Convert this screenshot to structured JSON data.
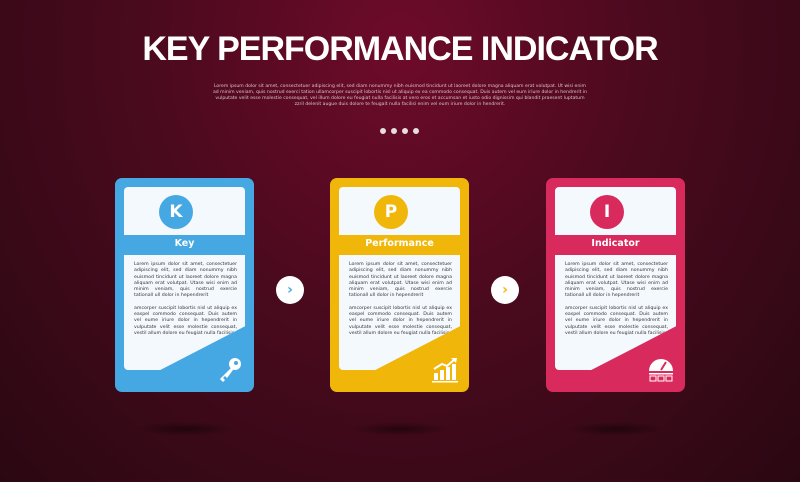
{
  "title": "KEY PERFORMANCE INDICATOR",
  "subtitle": "Lorem ipsum dolor sit amet, consectetuer adipiscing elit, sed diam nonummy nibh euismod tincidunt ut laoreet dolore magna aliquam erat volutpat. Ut wisi enim ad minim veniam, quis nostrud exerci tation ullamcorper suscipit lobortis nisl ut aliquip ex ea commodo consequat. Duis autem vel eum iriure dolor in hendrerit in vulputate velit esse molestie consequat, vel illum dolore eu feugiat nulla facilisis at vero eros et accumsan et iusto odio dignissim qui blandit praesent luptatum zzril delenit augue duis dolore te feugait nulla facilisi enim vel eum iriure dolor in hendrerit.",
  "pagination_dots": 4,
  "cards": [
    {
      "letter": "K",
      "label": "Key",
      "color": "#46a8e2",
      "icon": "key-icon",
      "para1": "Lorem ipsum dolor sit amet, consectetuer adipiscing elit, sed diam nonummy nibh euismod tincidunt ut laoreet dolore magna aliquam erat volutpat. Utase wisi enim ad minim veniam, quis nostrud exercie tationall ull dolor in hependrerit",
      "para2": "amcorper suscipit lobortis nisl ut aliquip ex easpel commodo consequat. Duis autem vel eume iriure dolor in hependrerit in vulputate velit esse molestie consequat, vestil allum dolore eu feugiat nulla facilisis"
    },
    {
      "letter": "P",
      "label": "Performance",
      "color": "#f0b70a",
      "icon": "growth-chart-icon",
      "para1": "Lorem ipsum dolor sit amet, consectetuer adipiscing elit, sed diam nonummy nibh euismod tincidunt ut laoreet dolore magna aliquam erat volutpat. Utase wisi enim ad minim veniam, quis nostrud exercie tationall ull dolor in hependrerit",
      "para2": "amcorper suscipit lobortis nisl ut aliquip ex easpel commodo consequat. Duis autem vel eume iriure dolor in hependrerit in vulputate velit esse molestie consequat, vestil allum dolore eu feugiat nulla facilisis"
    },
    {
      "letter": "I",
      "label": "Indicator",
      "color": "#d82a5c",
      "icon": "gauge-icon",
      "para1": "Lorem ipsum dolor sit amet, consectetuer adipiscing elit, sed diam nonummy nibh euismod tincidunt ut laoreet dolore magna aliquam erat volutpat. Utase wisi enim ad minim veniam, quis nostrud exercie tationall ull dolor in hependrerit",
      "para2": "amcorper suscipit lobortis nisl ut aliquip ex easpel commodo consequat. Duis autem vel eume iriure dolor in hependrerit in vulputate velit esse molestie consequat, vestil allum dolore eu feugiat nulla facilisis"
    }
  ],
  "arrows": [
    {
      "glyph": "›",
      "color": "#46a8e2"
    },
    {
      "glyph": "›",
      "color": "#f0b70a"
    }
  ]
}
